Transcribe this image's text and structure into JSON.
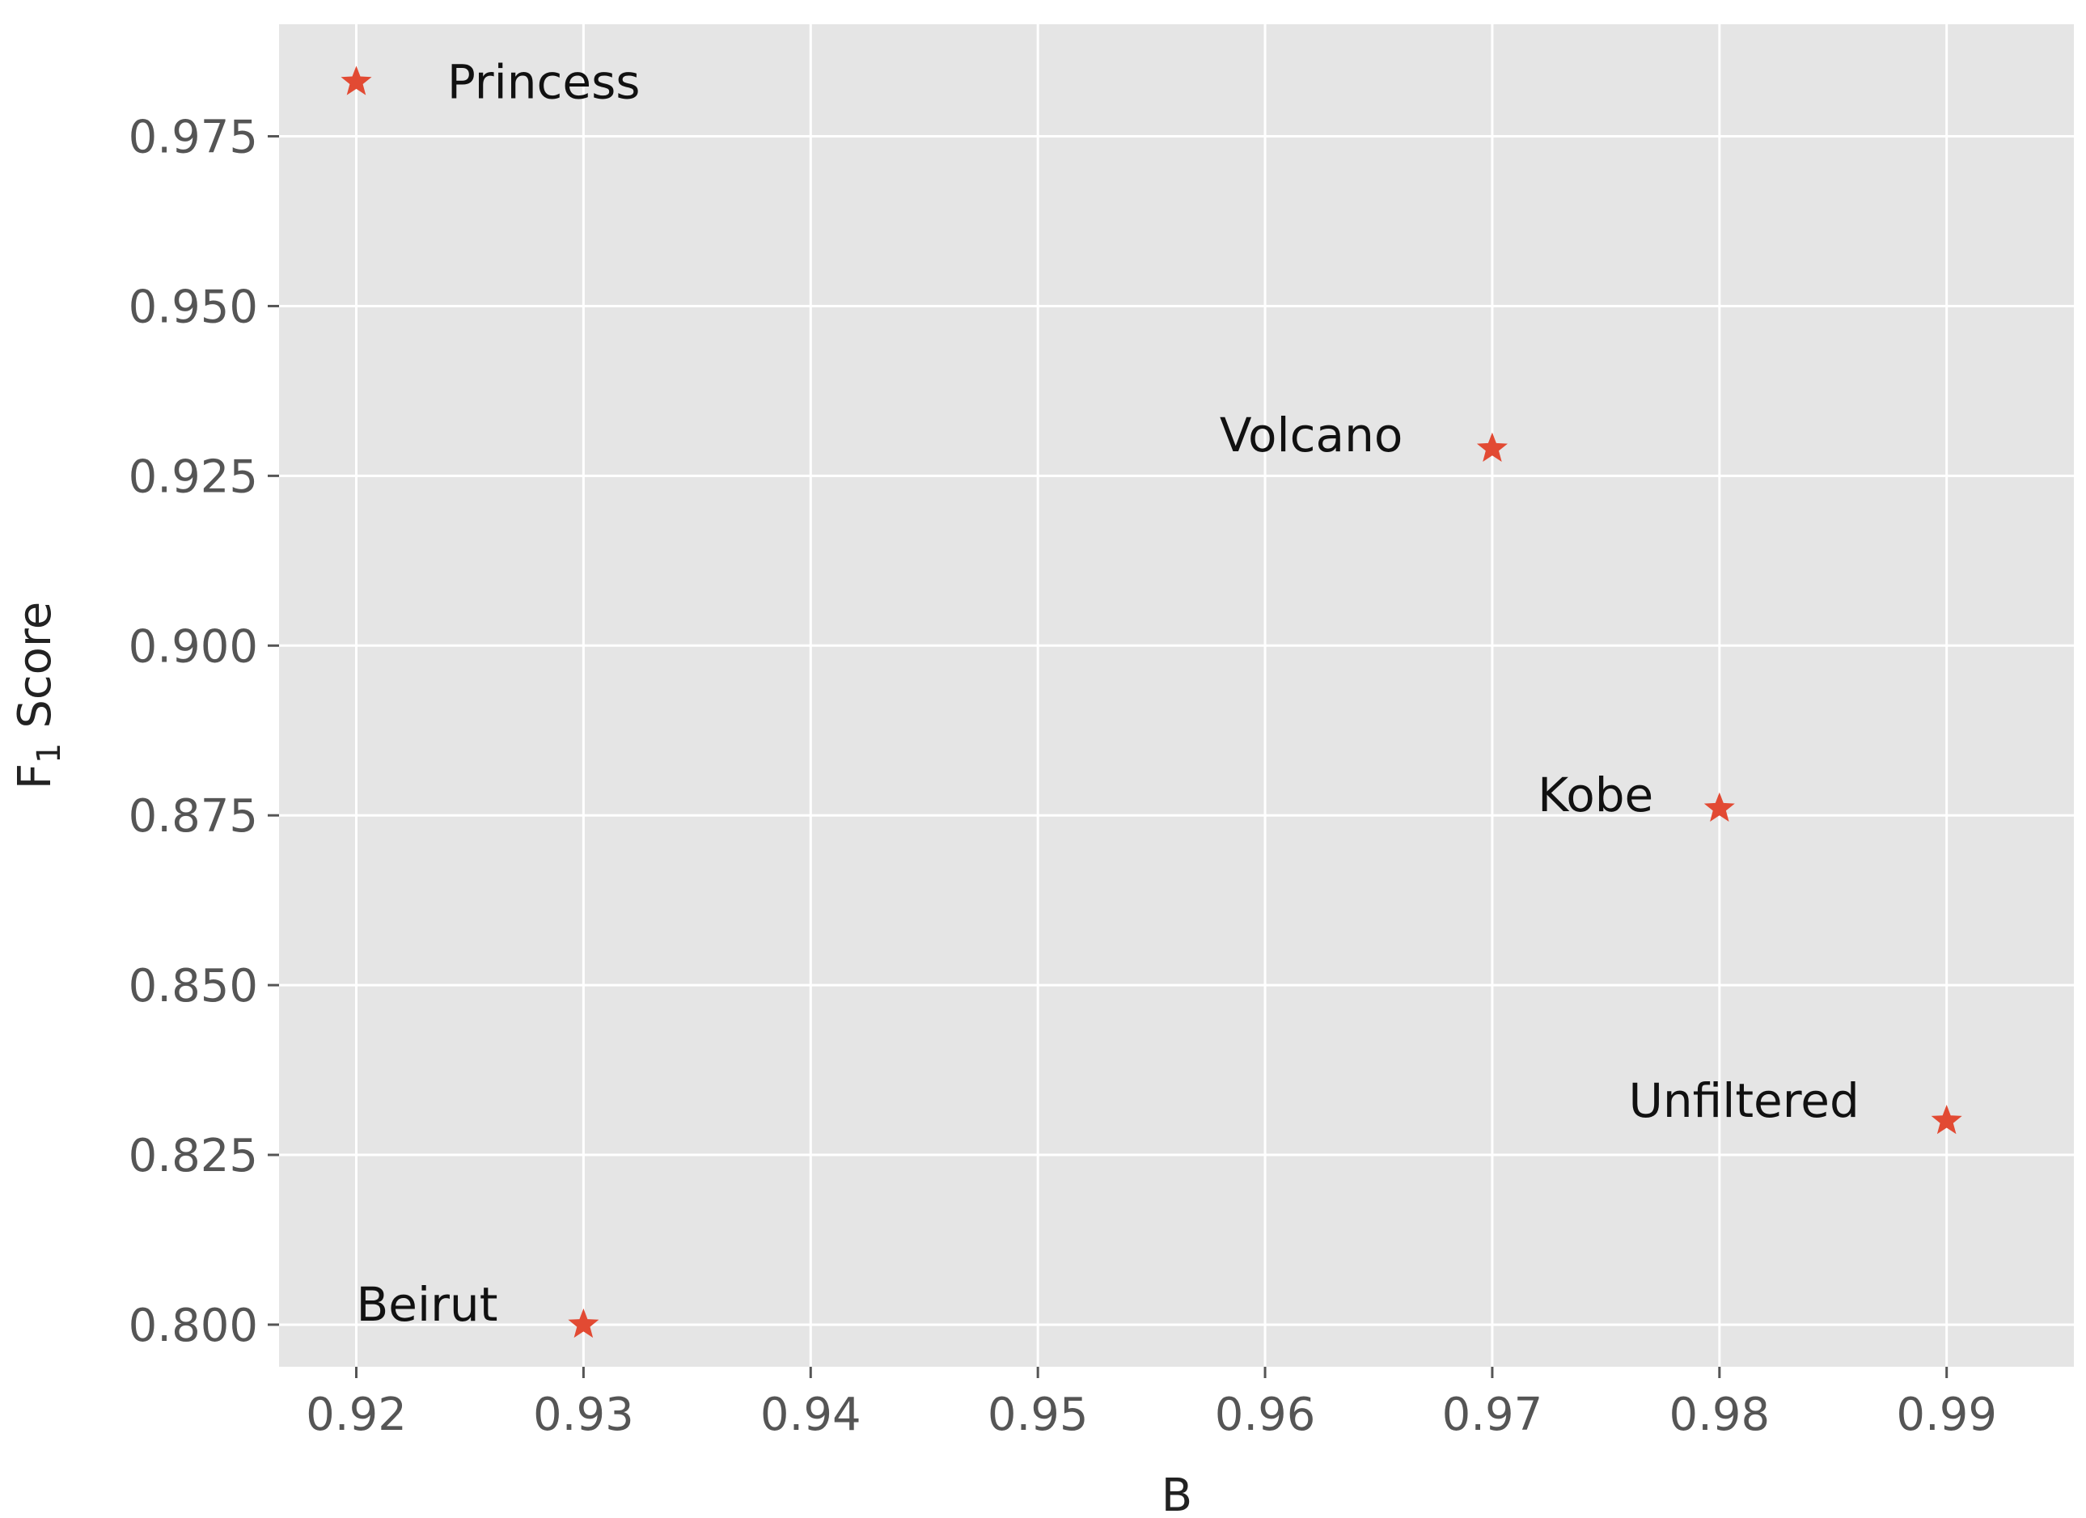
{
  "chart_data": {
    "type": "scatter",
    "xlabel": "B",
    "ylabel": {
      "main": "F",
      "subscript": "1",
      "suffix": " Score"
    },
    "xlim": [
      0.9166,
      0.9956
    ],
    "ylim": [
      0.7938,
      0.9915
    ],
    "x_ticks": [
      0.92,
      0.93,
      0.94,
      0.95,
      0.96,
      0.97,
      0.98,
      0.99
    ],
    "x_tick_labels": [
      "0.92",
      "0.93",
      "0.94",
      "0.95",
      "0.96",
      "0.97",
      "0.98",
      "0.99"
    ],
    "y_ticks": [
      0.8,
      0.825,
      0.85,
      0.875,
      0.9,
      0.925,
      0.95,
      0.975
    ],
    "y_tick_labels": [
      "0.800",
      "0.825",
      "0.850",
      "0.875",
      "0.900",
      "0.925",
      "0.950",
      "0.975"
    ],
    "grid": true,
    "marker": "star",
    "colors": {
      "background": "#e5e5e5",
      "grid": "#ffffff",
      "marker": "#e24a33"
    },
    "points": [
      {
        "label": "Princess",
        "x": 0.92,
        "y": 0.983,
        "label_x": 0.924,
        "label_y": 0.983
      },
      {
        "label": "Volcano",
        "x": 0.97,
        "y": 0.929,
        "label_x": 0.958,
        "label_y": 0.931
      },
      {
        "label": "Kobe",
        "x": 0.98,
        "y": 0.876,
        "label_x": 0.972,
        "label_y": 0.878
      },
      {
        "label": "Unfiltered",
        "x": 0.99,
        "y": 0.83,
        "label_x": 0.976,
        "label_y": 0.833
      },
      {
        "label": "Beirut",
        "x": 0.93,
        "y": 0.8,
        "label_x": 0.92,
        "label_y": 0.803
      }
    ]
  }
}
